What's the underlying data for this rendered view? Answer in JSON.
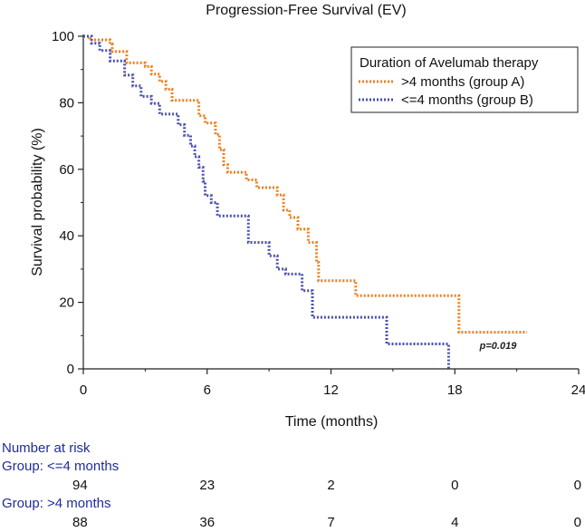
{
  "chart_data": {
    "type": "line",
    "subtype": "kaplan-meier",
    "title": "Progression-Free Survival (EV)",
    "xlabel": "Time (months)",
    "ylabel": "Survival probability (%)",
    "xlim": [
      0,
      24
    ],
    "ylim": [
      0,
      100
    ],
    "x_ticks": [
      "0",
      "6",
      "12",
      "18",
      "24"
    ],
    "y_ticks": [
      "0",
      "20",
      "40",
      "60",
      "80",
      "100"
    ],
    "grid": false,
    "legend": {
      "title": "Duration of Avelumab therapy",
      "position": "top-right"
    },
    "annotation": "p=0.019",
    "series": [
      {
        "name": ">4 months (group A)",
        "color": "#f07f1c",
        "line_style": "dotted",
        "points": [
          [
            0,
            100
          ],
          [
            0.3,
            98.9
          ],
          [
            1.3,
            97.7
          ],
          [
            1.4,
            95.4
          ],
          [
            2.1,
            92.0
          ],
          [
            3.0,
            90.9
          ],
          [
            3.3,
            88.6
          ],
          [
            3.7,
            86.4
          ],
          [
            4.0,
            84.1
          ],
          [
            4.3,
            80.7
          ],
          [
            5.6,
            76.1
          ],
          [
            5.9,
            73.9
          ],
          [
            6.4,
            70.5
          ],
          [
            6.6,
            65.9
          ],
          [
            6.8,
            61.4
          ],
          [
            7.0,
            59.1
          ],
          [
            7.9,
            56.8
          ],
          [
            8.4,
            54.5
          ],
          [
            9.4,
            52.3
          ],
          [
            9.7,
            47.7
          ],
          [
            10.0,
            45.5
          ],
          [
            10.4,
            42.0
          ],
          [
            10.9,
            38.0
          ],
          [
            11.3,
            32.0
          ],
          [
            11.4,
            26.5
          ],
          [
            13.2,
            22.0
          ],
          [
            18.2,
            11.0
          ],
          [
            21.5,
            11.0
          ]
        ]
      },
      {
        "name": "<=4 months (group B)",
        "color": "#4a4fb0",
        "line_style": "dotted",
        "points": [
          [
            0,
            100
          ],
          [
            0.4,
            97.9
          ],
          [
            0.8,
            95.7
          ],
          [
            1.3,
            92.6
          ],
          [
            2.0,
            88.3
          ],
          [
            2.4,
            85.1
          ],
          [
            2.8,
            81.9
          ],
          [
            3.3,
            79.8
          ],
          [
            3.7,
            76.6
          ],
          [
            4.6,
            73.4
          ],
          [
            4.9,
            70.2
          ],
          [
            5.2,
            67.0
          ],
          [
            5.4,
            63.8
          ],
          [
            5.6,
            60.6
          ],
          [
            5.8,
            56.4
          ],
          [
            5.9,
            52.1
          ],
          [
            6.2,
            50.0
          ],
          [
            6.5,
            46.0
          ],
          [
            8.0,
            38.0
          ],
          [
            9.0,
            34.0
          ],
          [
            9.4,
            30.0
          ],
          [
            9.8,
            28.5
          ],
          [
            10.6,
            23.5
          ],
          [
            11.1,
            15.5
          ],
          [
            14.7,
            7.5
          ],
          [
            17.7,
            0
          ]
        ]
      }
    ],
    "risk_table": {
      "title": "Number at risk",
      "times": [
        0,
        6,
        12,
        18,
        24
      ],
      "groups": [
        {
          "label": "Group: <=4 months",
          "counts": [
            "94",
            "23",
            "2",
            "0",
            "0"
          ]
        },
        {
          "label": "Group: >4 months",
          "counts": [
            "88",
            "36",
            "7",
            "4",
            "0"
          ]
        }
      ]
    }
  }
}
